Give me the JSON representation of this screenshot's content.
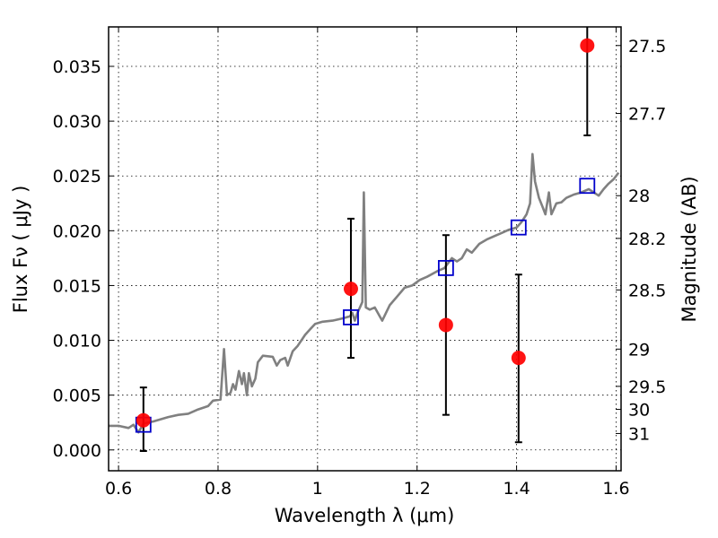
{
  "chart_data": {
    "type": "scatter",
    "xlabel": "Wavelength  λ (μm)",
    "ylabel": "Flux  Fν  ( μJy )",
    "y2label": "Magnitude (AB)",
    "xlim": [
      0.58,
      1.61
    ],
    "ylim": [
      -0.0019,
      0.0386
    ],
    "grid": true,
    "xticks": [
      0.6,
      0.8,
      1.0,
      1.2,
      1.4,
      1.6
    ],
    "xtick_labels": [
      "0.6",
      "0.8",
      "1",
      "1.2",
      "1.4",
      "1.6"
    ],
    "yticks": [
      0.0,
      0.005,
      0.01,
      0.015,
      0.02,
      0.025,
      0.03,
      0.035
    ],
    "ytick_labels": [
      "0.000",
      "0.005",
      "0.010",
      "0.015",
      "0.020",
      "0.025",
      "0.030",
      "0.035"
    ],
    "y2ticks": [
      {
        "flux": 0.0369,
        "label": "27.5"
      },
      {
        "flux": 0.0307,
        "label": "27.7"
      },
      {
        "flux": 0.0232,
        "label": "28"
      },
      {
        "flux": 0.0193,
        "label": "28.2"
      },
      {
        "flux": 0.0146,
        "label": "28.5"
      },
      {
        "flux": 0.0092,
        "label": "29"
      },
      {
        "flux": 0.0058,
        "label": "29.5"
      },
      {
        "flux": 0.0037,
        "label": "30"
      },
      {
        "flux": 0.0015,
        "label": "31"
      }
    ],
    "series": [
      {
        "kind": "line",
        "color": "#808080",
        "points": [
          [
            0.58,
            0.0022
          ],
          [
            0.6,
            0.0022
          ],
          [
            0.62,
            0.002
          ],
          [
            0.63,
            0.0023
          ],
          [
            0.64,
            0.0016
          ],
          [
            0.65,
            0.0024
          ],
          [
            0.67,
            0.0026
          ],
          [
            0.7,
            0.003
          ],
          [
            0.72,
            0.0032
          ],
          [
            0.74,
            0.0033
          ],
          [
            0.76,
            0.0037
          ],
          [
            0.78,
            0.004
          ],
          [
            0.79,
            0.0045
          ],
          [
            0.805,
            0.0046
          ],
          [
            0.812,
            0.0092
          ],
          [
            0.818,
            0.005
          ],
          [
            0.825,
            0.0052
          ],
          [
            0.83,
            0.006
          ],
          [
            0.835,
            0.0055
          ],
          [
            0.842,
            0.0072
          ],
          [
            0.848,
            0.006
          ],
          [
            0.852,
            0.007
          ],
          [
            0.858,
            0.005
          ],
          [
            0.862,
            0.007
          ],
          [
            0.868,
            0.0058
          ],
          [
            0.875,
            0.0065
          ],
          [
            0.88,
            0.008
          ],
          [
            0.89,
            0.0086
          ],
          [
            0.91,
            0.0085
          ],
          [
            0.918,
            0.0077
          ],
          [
            0.925,
            0.0082
          ],
          [
            0.935,
            0.0084
          ],
          [
            0.94,
            0.0077
          ],
          [
            0.95,
            0.009
          ],
          [
            0.96,
            0.0095
          ],
          [
            0.975,
            0.0105
          ],
          [
            0.985,
            0.011
          ],
          [
            0.995,
            0.0115
          ],
          [
            1.01,
            0.0117
          ],
          [
            1.03,
            0.0118
          ],
          [
            1.05,
            0.012
          ],
          [
            1.065,
            0.0122
          ],
          [
            1.07,
            0.0125
          ],
          [
            1.075,
            0.0118
          ],
          [
            1.08,
            0.0125
          ],
          [
            1.085,
            0.013
          ],
          [
            1.09,
            0.0135
          ],
          [
            1.093,
            0.0235
          ],
          [
            1.097,
            0.013
          ],
          [
            1.105,
            0.0128
          ],
          [
            1.115,
            0.013
          ],
          [
            1.125,
            0.0122
          ],
          [
            1.13,
            0.0118
          ],
          [
            1.145,
            0.0132
          ],
          [
            1.16,
            0.014
          ],
          [
            1.175,
            0.0148
          ],
          [
            1.19,
            0.015
          ],
          [
            1.205,
            0.0155
          ],
          [
            1.22,
            0.0158
          ],
          [
            1.24,
            0.0163
          ],
          [
            1.255,
            0.0166
          ],
          [
            1.27,
            0.0175
          ],
          [
            1.28,
            0.0172
          ],
          [
            1.29,
            0.0175
          ],
          [
            1.3,
            0.0183
          ],
          [
            1.31,
            0.018
          ],
          [
            1.325,
            0.0188
          ],
          [
            1.34,
            0.0192
          ],
          [
            1.355,
            0.0195
          ],
          [
            1.37,
            0.0198
          ],
          [
            1.385,
            0.0201
          ],
          [
            1.4,
            0.0203
          ],
          [
            1.41,
            0.0208
          ],
          [
            1.42,
            0.0215
          ],
          [
            1.427,
            0.0225
          ],
          [
            1.432,
            0.027
          ],
          [
            1.437,
            0.0245
          ],
          [
            1.445,
            0.023
          ],
          [
            1.452,
            0.0222
          ],
          [
            1.458,
            0.0215
          ],
          [
            1.465,
            0.0235
          ],
          [
            1.47,
            0.0215
          ],
          [
            1.48,
            0.0225
          ],
          [
            1.49,
            0.0226
          ],
          [
            1.5,
            0.023
          ],
          [
            1.515,
            0.0233
          ],
          [
            1.53,
            0.0235
          ],
          [
            1.545,
            0.0238
          ],
          [
            1.555,
            0.0235
          ],
          [
            1.565,
            0.0232
          ],
          [
            1.575,
            0.0238
          ],
          [
            1.585,
            0.0243
          ],
          [
            1.595,
            0.0247
          ],
          [
            1.605,
            0.0253
          ]
        ]
      },
      {
        "kind": "squares",
        "color": "#0000cc",
        "points": [
          [
            0.65,
            0.0023
          ],
          [
            1.067,
            0.0121
          ],
          [
            1.258,
            0.0166
          ],
          [
            1.404,
            0.0203
          ],
          [
            1.542,
            0.0241
          ]
        ]
      },
      {
        "kind": "points_with_errors",
        "color": "#ff0000",
        "points": [
          {
            "x": 0.65,
            "y": 0.0027,
            "lo": -0.0001,
            "hi": 0.0057
          },
          {
            "x": 1.067,
            "y": 0.0147,
            "lo": 0.0084,
            "hi": 0.0211
          },
          {
            "x": 1.258,
            "y": 0.0114,
            "lo": 0.0032,
            "hi": 0.0196
          },
          {
            "x": 1.404,
            "y": 0.0084,
            "lo": 0.0007,
            "hi": 0.016
          },
          {
            "x": 1.542,
            "y": 0.0369,
            "lo": 0.0287,
            "hi": 0.0386
          }
        ]
      }
    ]
  }
}
